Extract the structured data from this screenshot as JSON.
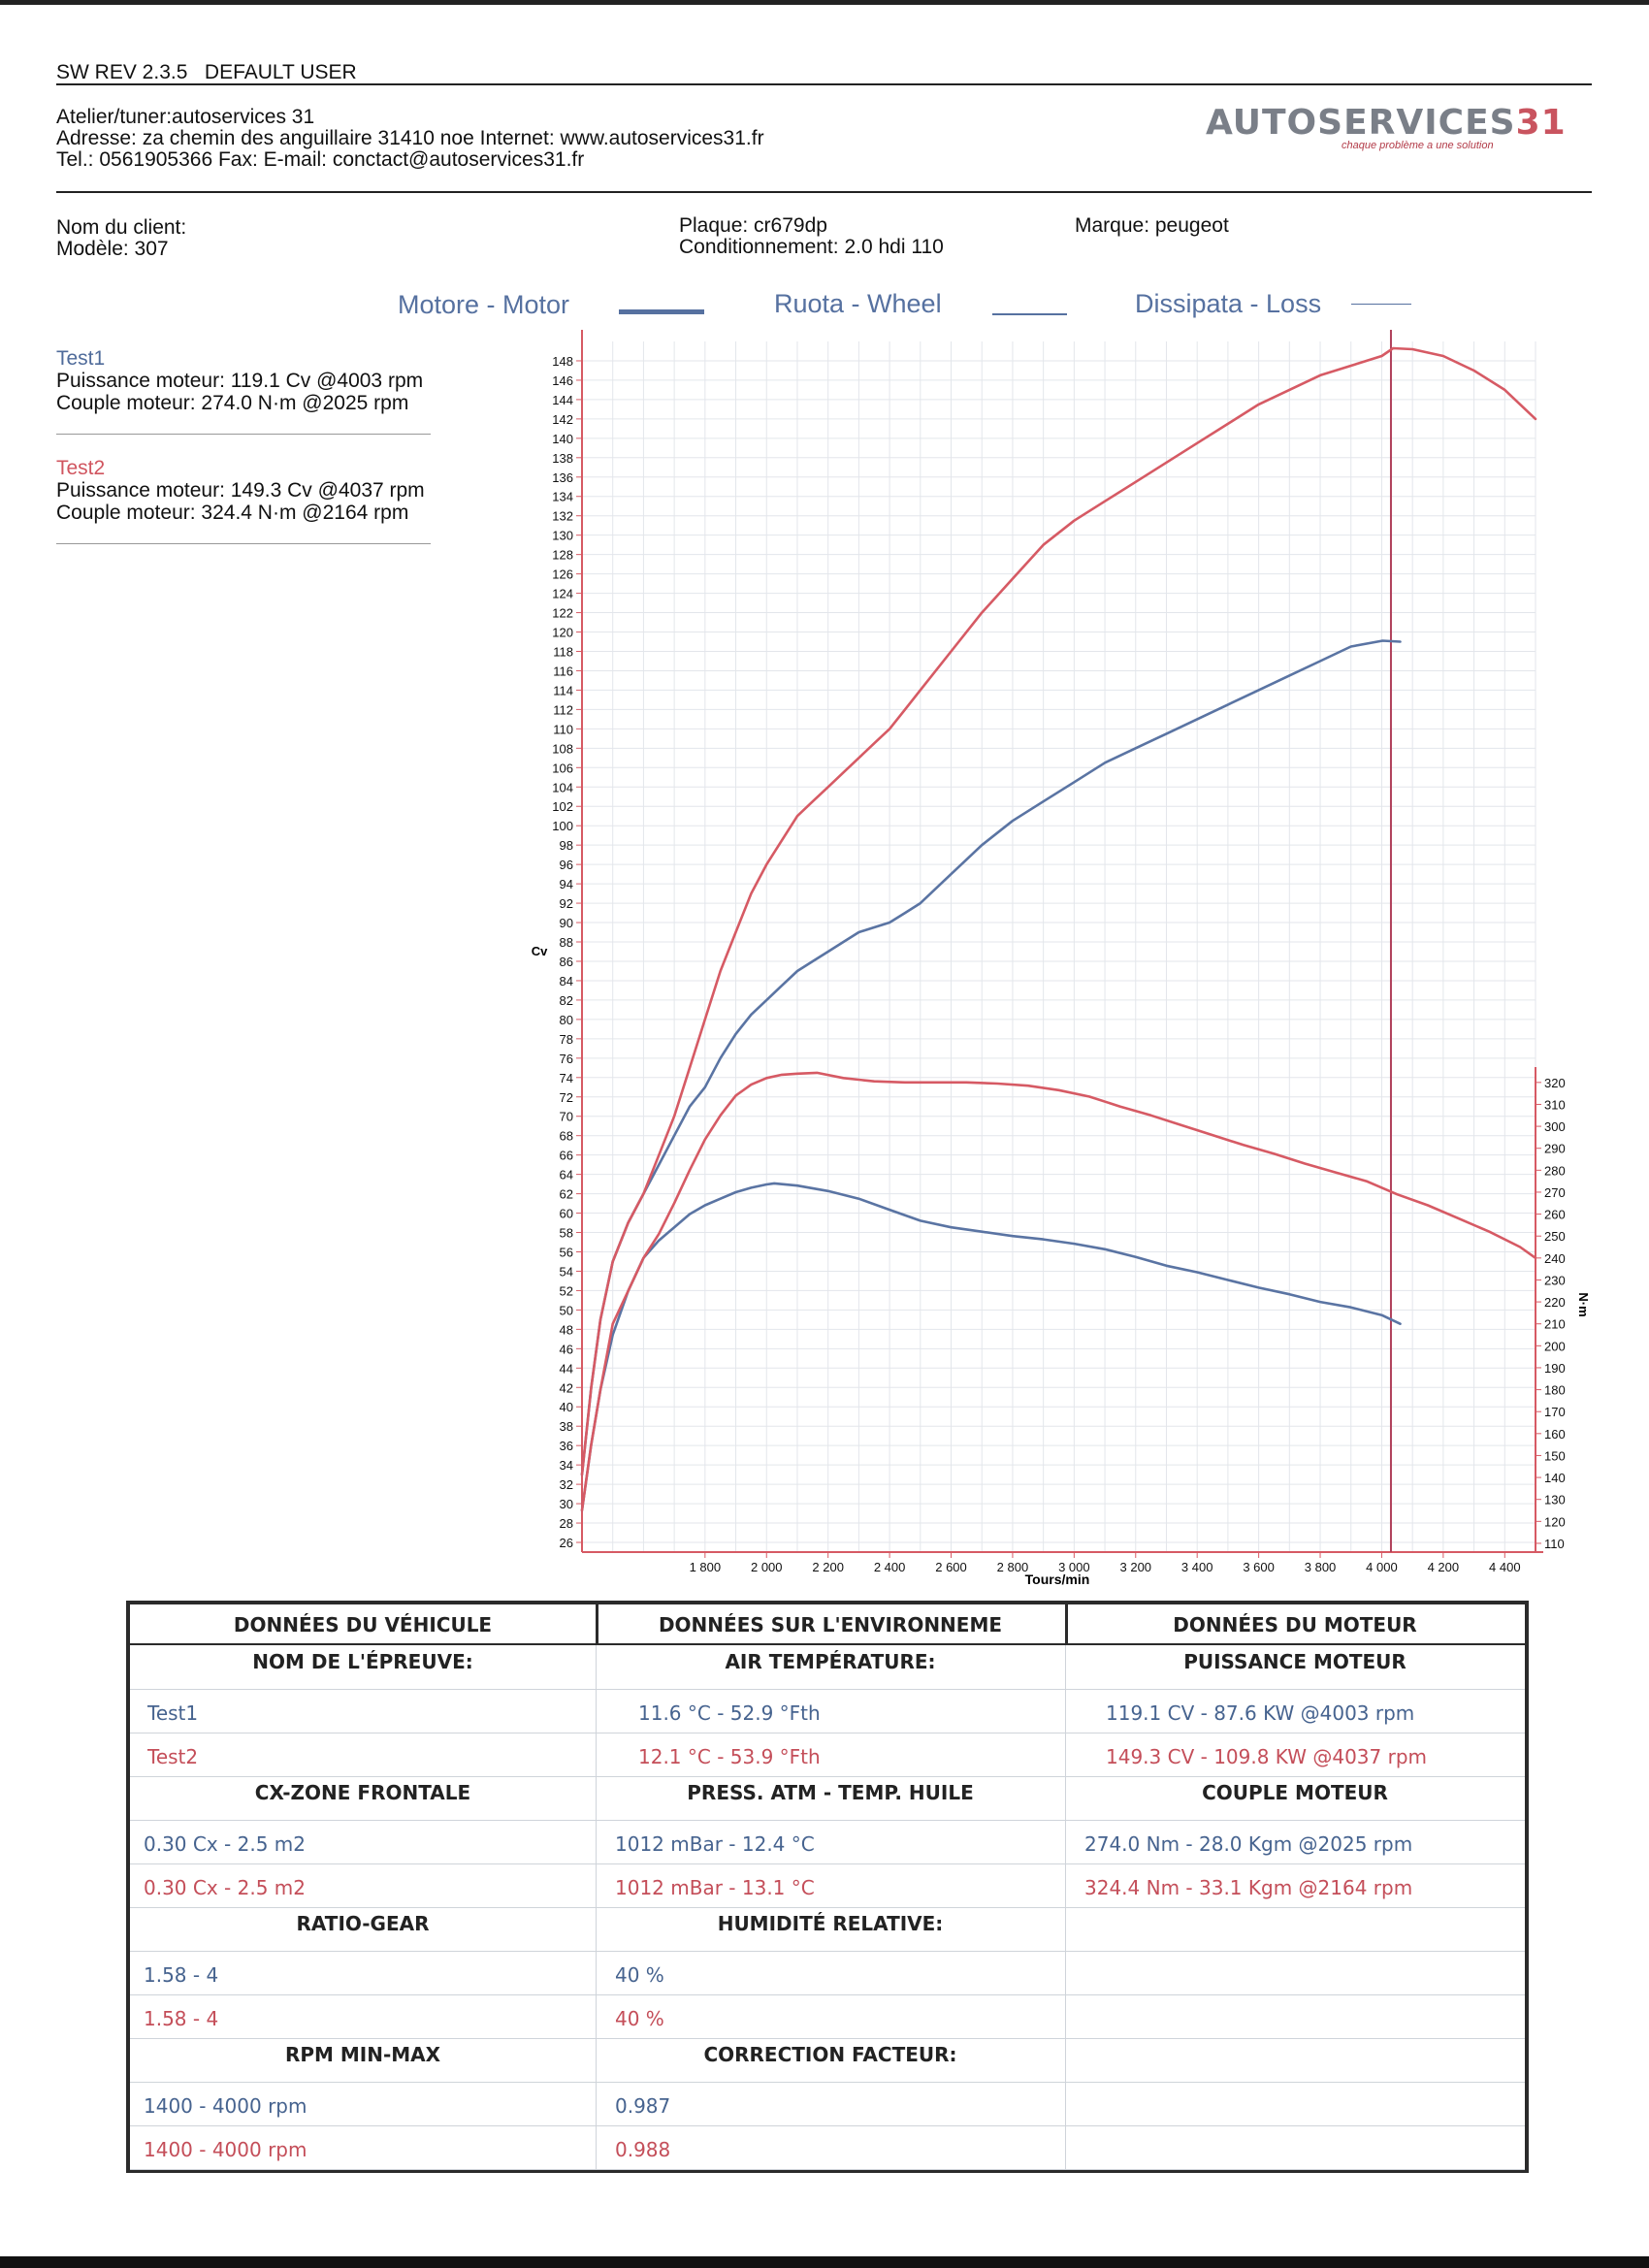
{
  "header": {
    "sw_rev": "SW REV 2.3.5",
    "user": "DEFAULT USER",
    "atelier": "Atelier/tuner:autoservices 31",
    "adresse": "Adresse: za chemin des anguillaire 31410 noe Internet: www.autoservices31.fr",
    "tel": "Tel.: 0561905366 Fax:  E-mail: conctact@autoservices31.fr",
    "logo_word": "AUTOSERVICES",
    "logo_num": "31",
    "logo_tag": "chaque problème a une solution"
  },
  "client": {
    "nom": "Nom du client:",
    "modele": "Modèle: 307",
    "plaque": "Plaque: cr679dp",
    "conditionnement": "Conditionnement: 2.0 hdi 110",
    "marque": "Marque: peugeot"
  },
  "legend": {
    "motor": "Motore - Motor",
    "wheel": "Ruota - Wheel",
    "loss": "Dissipata - Loss",
    "color": "#5671a0"
  },
  "tests": [
    {
      "name": "Test1",
      "power": "Puissance moteur: 119.1 Cv @4003 rpm",
      "torque": "Couple moteur: 274.0 N·m @2025 rpm",
      "color": "#4f6b9a"
    },
    {
      "name": "Test2",
      "power": "Puissance moteur: 149.3 Cv @4037 rpm",
      "torque": "Couple moteur: 324.4 N·m @2164 rpm",
      "color": "#d0555f"
    }
  ],
  "chart_data": {
    "type": "line",
    "xlabel": "Tours/min",
    "ylabel": "Cv",
    "y2label": "N·m",
    "xlim": [
      1400,
      4500
    ],
    "ylim": [
      25,
      150
    ],
    "y2lim": [
      106,
      327
    ],
    "x_ticks": [
      1800,
      2000,
      2200,
      2400,
      2600,
      2800,
      3000,
      3200,
      3400,
      3600,
      3800,
      4000,
      4200,
      4400
    ],
    "x_tick_labels": [
      "1 800",
      "2 000",
      "2 200",
      "2 400",
      "2 600",
      "2 800",
      "3 000",
      "3 200",
      "3 400",
      "3 600",
      "3 800",
      "4 000",
      "4 200",
      "4 400"
    ],
    "y_ticks": [
      26,
      28,
      30,
      32,
      34,
      36,
      38,
      40,
      42,
      44,
      46,
      48,
      50,
      52,
      54,
      56,
      58,
      60,
      62,
      64,
      66,
      68,
      70,
      72,
      74,
      76,
      78,
      80,
      82,
      84,
      86,
      88,
      90,
      92,
      94,
      96,
      98,
      100,
      102,
      104,
      106,
      108,
      110,
      112,
      114,
      116,
      118,
      120,
      122,
      124,
      126,
      128,
      130,
      132,
      134,
      136,
      138,
      140,
      142,
      144,
      146,
      148
    ],
    "y2_ticks": [
      110,
      120,
      130,
      140,
      150,
      160,
      170,
      180,
      190,
      200,
      210,
      220,
      230,
      240,
      250,
      260,
      270,
      280,
      290,
      300,
      310,
      320
    ],
    "cursor_x": 4030,
    "grid": true,
    "series": [
      {
        "name": "Test1",
        "kind": "power",
        "axis": "left",
        "color": "#5a74a3",
        "x": [
          1400,
          1430,
          1460,
          1500,
          1550,
          1600,
          1650,
          1700,
          1750,
          1800,
          1850,
          1900,
          1950,
          2000,
          2050,
          2100,
          2150,
          2200,
          2250,
          2300,
          2350,
          2400,
          2450,
          2500,
          2600,
          2700,
          2800,
          2900,
          3000,
          3100,
          3200,
          3300,
          3400,
          3500,
          3600,
          3700,
          3800,
          3900,
          4003,
          4060
        ],
        "y": [
          33,
          42,
          49,
          55,
          59,
          62,
          65,
          68,
          71,
          73,
          76,
          78.5,
          80.5,
          82,
          83.5,
          85,
          86,
          87,
          88,
          89,
          89.5,
          90,
          91,
          92,
          95,
          98,
          100.5,
          102.5,
          104.5,
          106.5,
          108,
          109.5,
          111,
          112.5,
          114,
          115.5,
          117,
          118.5,
          119.1,
          119
        ]
      },
      {
        "name": "Test2",
        "kind": "power",
        "axis": "left",
        "color": "#d65a64",
        "x": [
          1400,
          1430,
          1460,
          1500,
          1550,
          1600,
          1650,
          1700,
          1750,
          1800,
          1850,
          1900,
          1950,
          2000,
          2050,
          2100,
          2150,
          2200,
          2250,
          2300,
          2350,
          2400,
          2450,
          2500,
          2600,
          2700,
          2800,
          2900,
          3000,
          3100,
          3200,
          3300,
          3400,
          3500,
          3600,
          3700,
          3800,
          3900,
          4000,
          4037,
          4100,
          4200,
          4300,
          4400,
          4500
        ],
        "y": [
          33,
          42,
          49,
          55,
          59,
          62,
          66,
          70,
          75,
          80,
          85,
          89,
          93,
          96,
          98.5,
          101,
          102.5,
          104,
          105.5,
          107,
          108.5,
          110,
          112,
          114,
          118,
          122,
          125.5,
          129,
          131.5,
          133.5,
          135.5,
          137.5,
          139.5,
          141.5,
          143.5,
          145,
          146.5,
          147.5,
          148.5,
          149.3,
          149.2,
          148.5,
          147,
          145,
          142
        ]
      },
      {
        "name": "Test1",
        "kind": "torque",
        "axis": "right",
        "color": "#5a74a3",
        "x": [
          1400,
          1430,
          1460,
          1500,
          1550,
          1600,
          1650,
          1700,
          1750,
          1800,
          1850,
          1900,
          1950,
          2000,
          2025,
          2100,
          2200,
          2300,
          2400,
          2500,
          2600,
          2700,
          2800,
          2900,
          3000,
          3100,
          3200,
          3300,
          3400,
          3500,
          3600,
          3700,
          3800,
          3900,
          4000,
          4060
        ],
        "y": [
          125,
          155,
          180,
          205,
          225,
          240,
          248,
          254,
          260,
          264,
          267,
          270,
          272,
          273.5,
          274,
          273,
          270.5,
          267,
          262,
          257,
          254,
          252,
          250,
          248.5,
          246.5,
          244,
          240.5,
          236.5,
          233.5,
          230,
          226.5,
          223.5,
          220,
          217.5,
          214,
          210
        ]
      },
      {
        "name": "Test2",
        "kind": "torque",
        "axis": "right",
        "color": "#d65a64",
        "x": [
          1400,
          1430,
          1460,
          1500,
          1550,
          1600,
          1650,
          1700,
          1750,
          1800,
          1850,
          1900,
          1950,
          2000,
          2050,
          2100,
          2164,
          2250,
          2350,
          2450,
          2550,
          2650,
          2750,
          2850,
          2950,
          3050,
          3150,
          3250,
          3350,
          3450,
          3550,
          3650,
          3750,
          3850,
          3950,
          4050,
          4150,
          4250,
          4350,
          4450,
          4500
        ],
        "y": [
          125,
          155,
          180,
          210,
          225,
          240,
          251,
          265,
          280,
          294,
          305,
          314,
          319,
          322,
          323.5,
          324,
          324.4,
          322,
          320.5,
          320,
          320,
          320,
          319.5,
          318.5,
          316.5,
          313.5,
          309,
          305,
          300.5,
          296,
          291.5,
          287.5,
          283,
          279,
          275,
          269,
          264,
          258,
          252,
          245,
          240
        ]
      }
    ]
  },
  "table": {
    "sections": [
      {
        "title": "DONNÉES DU VÉHICULE"
      },
      {
        "title": "DONNÉES SUR L'ENVIRONNEME"
      },
      {
        "title": "DONNÉES DU MOTEUR"
      }
    ],
    "col1": [
      {
        "type": "h",
        "text": "NOM DE L'ÉPREUVE:"
      },
      {
        "type": "v1",
        "text": "Test1"
      },
      {
        "type": "v2",
        "text": "Test2"
      },
      {
        "type": "h",
        "text": "CX-ZONE FRONTALE"
      },
      {
        "type": "v1",
        "text": "0.30 Cx - 2.5 m2"
      },
      {
        "type": "v2",
        "text": "0.30 Cx - 2.5 m2"
      },
      {
        "type": "h",
        "text": "RATIO-GEAR"
      },
      {
        "type": "v1",
        "text": "1.58 - 4"
      },
      {
        "type": "v2",
        "text": "1.58 - 4"
      },
      {
        "type": "h",
        "text": "RPM MIN-MAX"
      },
      {
        "type": "v1",
        "text": "1400 - 4000 rpm"
      },
      {
        "type": "v2",
        "text": "1400 - 4000 rpm"
      }
    ],
    "col2": [
      {
        "type": "h",
        "text": "AIR TEMPÉRATURE:"
      },
      {
        "type": "v1",
        "text": "11.6 °C - 52.9 °Fth"
      },
      {
        "type": "v2",
        "text": "12.1 °C - 53.9 °Fth"
      },
      {
        "type": "h",
        "text": "PRESS. ATM - TEMP. HUILE"
      },
      {
        "type": "v1",
        "text": "1012 mBar - 12.4 °C"
      },
      {
        "type": "v2",
        "text": "1012 mBar - 13.1 °C"
      },
      {
        "type": "h",
        "text": "HUMIDITÉ RELATIVE:"
      },
      {
        "type": "v1",
        "text": "40 %"
      },
      {
        "type": "v2",
        "text": "40 %"
      },
      {
        "type": "h",
        "text": "CORRECTION FACTEUR:"
      },
      {
        "type": "v1",
        "text": "0.987"
      },
      {
        "type": "v2",
        "text": "0.988"
      }
    ],
    "col3": [
      {
        "type": "h",
        "text": "PUISSANCE MOTEUR"
      },
      {
        "type": "v1",
        "text": "119.1 CV - 87.6 KW  @4003 rpm"
      },
      {
        "type": "v2",
        "text": "149.3 CV - 109.8 KW  @4037 rpm"
      },
      {
        "type": "h",
        "text": "COUPLE MOTEUR"
      },
      {
        "type": "v1",
        "text": "274.0 Nm - 28.0 Kgm  @2025 rpm"
      },
      {
        "type": "v2",
        "text": "324.4 Nm - 33.1 Kgm  @2164 rpm"
      },
      {
        "type": "e",
        "text": ""
      },
      {
        "type": "e",
        "text": ""
      },
      {
        "type": "e",
        "text": ""
      },
      {
        "type": "e",
        "text": ""
      },
      {
        "type": "e",
        "text": ""
      },
      {
        "type": "e",
        "text": ""
      }
    ]
  }
}
